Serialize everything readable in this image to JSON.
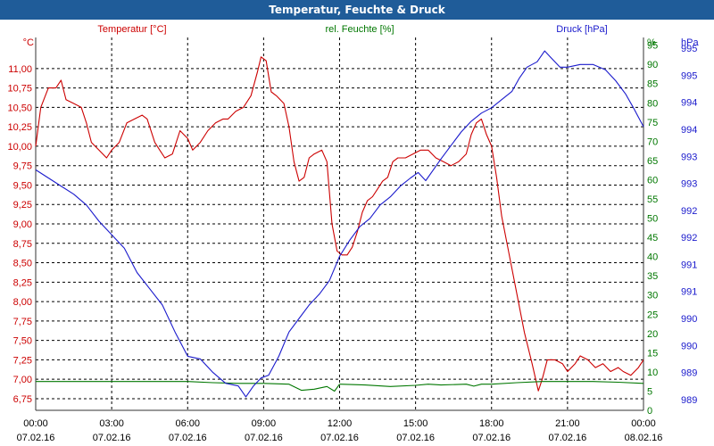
{
  "title": "Temperatur, Feuchte & Druck",
  "colors": {
    "temperature": "#cc0000",
    "humidity": "#007700",
    "pressure": "#1a1acc",
    "titlebar": "#1f5c99",
    "grid": "#000000"
  },
  "chart_data": {
    "type": "line",
    "title": "Temperatur, Feuchte & Druck",
    "x_unit": "hours from 07.02.16 00:00",
    "x_ticks": [
      {
        "time": "00:00",
        "date": "07.02.16"
      },
      {
        "time": "03:00",
        "date": "07.02.16"
      },
      {
        "time": "06:00",
        "date": "07.02.16"
      },
      {
        "time": "09:00",
        "date": "07.02.16"
      },
      {
        "time": "12:00",
        "date": "07.02.16"
      },
      {
        "time": "15:00",
        "date": "07.02.16"
      },
      {
        "time": "18:00",
        "date": "07.02.16"
      },
      {
        "time": "21:00",
        "date": "07.02.16"
      },
      {
        "time": "00:00",
        "date": "08.02.16"
      }
    ],
    "x_range": [
      0,
      24
    ],
    "axes": {
      "temperature": {
        "label": "Temperatur [°C]",
        "unit": "°C",
        "range": [
          6.6,
          11.4
        ],
        "ticks": [
          "11,00",
          "10,75",
          "10,50",
          "10,25",
          "10,00",
          "9,75",
          "9,50",
          "9,25",
          "9,00",
          "8,75",
          "8,50",
          "8,25",
          "8,00",
          "7,75",
          "7,50",
          "7,25",
          "7,00",
          "6,75"
        ],
        "tick_values": [
          11.0,
          10.75,
          10.5,
          10.25,
          10.0,
          9.75,
          9.5,
          9.25,
          9.0,
          8.75,
          8.5,
          8.25,
          8.0,
          7.75,
          7.5,
          7.25,
          7.0,
          6.75
        ]
      },
      "humidity": {
        "label": "rel. Feuchte [%]",
        "unit": "%",
        "range": [
          0,
          97
        ],
        "ticks": [
          "95",
          "90",
          "85",
          "80",
          "75",
          "70",
          "65",
          "60",
          "55",
          "50",
          "45",
          "40",
          "35",
          "30",
          "25",
          "20",
          "15",
          "10",
          "5",
          "0"
        ],
        "tick_values": [
          95,
          90,
          85,
          80,
          75,
          70,
          65,
          60,
          55,
          50,
          45,
          40,
          35,
          30,
          25,
          20,
          15,
          10,
          5,
          0
        ]
      },
      "pressure": {
        "label": "Druck [hPa]",
        "unit": "hPa",
        "range": [
          988.6,
          995.5
        ],
        "ticks": [
          "995",
          "995",
          "994",
          "994",
          "993",
          "993",
          "992",
          "992",
          "991",
          "991",
          "990",
          "990",
          "989",
          "989"
        ],
        "tick_values": [
          995.3,
          994.8,
          994.3,
          993.8,
          993.3,
          992.8,
          992.3,
          991.8,
          991.3,
          990.8,
          990.3,
          989.8,
          989.3,
          988.8
        ]
      }
    },
    "series": [
      {
        "name": "Temperatur",
        "axis": "temperature",
        "points": [
          [
            0,
            10.0
          ],
          [
            0.2,
            10.5
          ],
          [
            0.5,
            10.75
          ],
          [
            0.8,
            10.75
          ],
          [
            1.0,
            10.85
          ],
          [
            1.2,
            10.6
          ],
          [
            1.5,
            10.55
          ],
          [
            1.8,
            10.5
          ],
          [
            2.0,
            10.3
          ],
          [
            2.2,
            10.05
          ],
          [
            2.5,
            9.95
          ],
          [
            2.8,
            9.85
          ],
          [
            3.0,
            9.95
          ],
          [
            3.3,
            10.05
          ],
          [
            3.6,
            10.3
          ],
          [
            3.9,
            10.35
          ],
          [
            4.2,
            10.4
          ],
          [
            4.4,
            10.35
          ],
          [
            4.7,
            10.05
          ],
          [
            4.9,
            9.95
          ],
          [
            5.1,
            9.85
          ],
          [
            5.4,
            9.9
          ],
          [
            5.7,
            10.2
          ],
          [
            6.0,
            10.1
          ],
          [
            6.2,
            9.95
          ],
          [
            6.5,
            10.05
          ],
          [
            6.8,
            10.2
          ],
          [
            7.1,
            10.3
          ],
          [
            7.4,
            10.35
          ],
          [
            7.6,
            10.35
          ],
          [
            7.9,
            10.45
          ],
          [
            8.2,
            10.5
          ],
          [
            8.5,
            10.65
          ],
          [
            8.75,
            10.95
          ],
          [
            8.9,
            11.15
          ],
          [
            9.1,
            11.1
          ],
          [
            9.3,
            10.7
          ],
          [
            9.5,
            10.65
          ],
          [
            9.8,
            10.55
          ],
          [
            10.0,
            10.25
          ],
          [
            10.2,
            9.8
          ],
          [
            10.4,
            9.55
          ],
          [
            10.6,
            9.6
          ],
          [
            10.8,
            9.85
          ],
          [
            11.0,
            9.9
          ],
          [
            11.3,
            9.95
          ],
          [
            11.5,
            9.8
          ],
          [
            11.7,
            9.0
          ],
          [
            11.9,
            8.65
          ],
          [
            12.1,
            8.6
          ],
          [
            12.3,
            8.6
          ],
          [
            12.5,
            8.7
          ],
          [
            12.7,
            8.9
          ],
          [
            12.9,
            9.15
          ],
          [
            13.1,
            9.3
          ],
          [
            13.3,
            9.35
          ],
          [
            13.5,
            9.45
          ],
          [
            13.7,
            9.55
          ],
          [
            13.9,
            9.6
          ],
          [
            14.1,
            9.8
          ],
          [
            14.3,
            9.85
          ],
          [
            14.6,
            9.85
          ],
          [
            14.9,
            9.9
          ],
          [
            15.2,
            9.95
          ],
          [
            15.5,
            9.95
          ],
          [
            15.8,
            9.85
          ],
          [
            16.1,
            9.8
          ],
          [
            16.4,
            9.75
          ],
          [
            16.7,
            9.8
          ],
          [
            17.0,
            9.9
          ],
          [
            17.2,
            10.15
          ],
          [
            17.4,
            10.3
          ],
          [
            17.6,
            10.35
          ],
          [
            17.8,
            10.15
          ],
          [
            18.0,
            10.0
          ],
          [
            18.2,
            9.6
          ],
          [
            18.4,
            9.1
          ],
          [
            18.7,
            8.6
          ],
          [
            19.0,
            8.1
          ],
          [
            19.3,
            7.6
          ],
          [
            19.6,
            7.2
          ],
          [
            19.85,
            6.85
          ],
          [
            20.0,
            7.0
          ],
          [
            20.2,
            7.25
          ],
          [
            20.5,
            7.25
          ],
          [
            20.8,
            7.2
          ],
          [
            21.0,
            7.1
          ],
          [
            21.3,
            7.2
          ],
          [
            21.5,
            7.3
          ],
          [
            21.8,
            7.25
          ],
          [
            22.1,
            7.15
          ],
          [
            22.4,
            7.2
          ],
          [
            22.7,
            7.1
          ],
          [
            23.0,
            7.15
          ],
          [
            23.2,
            7.1
          ],
          [
            23.5,
            7.05
          ],
          [
            23.8,
            7.15
          ],
          [
            24.0,
            7.25
          ]
        ]
      },
      {
        "name": "rel. Feuchte",
        "axis": "humidity",
        "points": [
          [
            0,
            7.5
          ],
          [
            2,
            7.5
          ],
          [
            4,
            7.5
          ],
          [
            6,
            7.5
          ],
          [
            7,
            7.2
          ],
          [
            8,
            7.0
          ],
          [
            9,
            7.0
          ],
          [
            10,
            6.8
          ],
          [
            10.5,
            5.2
          ],
          [
            11,
            5.5
          ],
          [
            11.5,
            6.2
          ],
          [
            11.8,
            5.0
          ],
          [
            12,
            6.8
          ],
          [
            13,
            6.6
          ],
          [
            14,
            6.2
          ],
          [
            15,
            6.5
          ],
          [
            15.5,
            6.8
          ],
          [
            16,
            6.6
          ],
          [
            17,
            6.8
          ],
          [
            17.3,
            6.3
          ],
          [
            17.6,
            6.8
          ],
          [
            18,
            6.8
          ],
          [
            19,
            7.2
          ],
          [
            20,
            7.5
          ],
          [
            21,
            7.5
          ],
          [
            22,
            7.5
          ],
          [
            23,
            7.3
          ],
          [
            24,
            7.0
          ]
        ]
      },
      {
        "name": "Druck",
        "axis": "pressure",
        "points": [
          [
            0,
            993.05
          ],
          [
            0.5,
            992.9
          ],
          [
            1.0,
            992.75
          ],
          [
            1.5,
            992.6
          ],
          [
            2.0,
            992.4
          ],
          [
            2.5,
            992.1
          ],
          [
            3.0,
            991.85
          ],
          [
            3.5,
            991.6
          ],
          [
            4.0,
            991.15
          ],
          [
            4.5,
            990.85
          ],
          [
            5.0,
            990.55
          ],
          [
            5.5,
            990.05
          ],
          [
            6.0,
            989.6
          ],
          [
            6.5,
            989.55
          ],
          [
            7.0,
            989.3
          ],
          [
            7.5,
            989.1
          ],
          [
            8.0,
            989.05
          ],
          [
            8.3,
            988.85
          ],
          [
            8.6,
            989.05
          ],
          [
            8.9,
            989.2
          ],
          [
            9.2,
            989.25
          ],
          [
            9.6,
            989.6
          ],
          [
            10.0,
            990.05
          ],
          [
            10.4,
            990.3
          ],
          [
            10.8,
            990.55
          ],
          [
            11.2,
            990.75
          ],
          [
            11.6,
            991.0
          ],
          [
            12.0,
            991.45
          ],
          [
            12.4,
            991.75
          ],
          [
            12.8,
            992.0
          ],
          [
            13.2,
            992.15
          ],
          [
            13.6,
            992.4
          ],
          [
            14.0,
            992.55
          ],
          [
            14.4,
            992.75
          ],
          [
            14.8,
            992.9
          ],
          [
            15.1,
            993.0
          ],
          [
            15.4,
            992.85
          ],
          [
            15.7,
            993.05
          ],
          [
            16.0,
            993.25
          ],
          [
            16.4,
            993.5
          ],
          [
            16.8,
            993.75
          ],
          [
            17.2,
            993.95
          ],
          [
            17.6,
            994.1
          ],
          [
            18.0,
            994.2
          ],
          [
            18.4,
            994.35
          ],
          [
            18.8,
            994.5
          ],
          [
            19.1,
            994.75
          ],
          [
            19.4,
            994.95
          ],
          [
            19.8,
            995.05
          ],
          [
            20.1,
            995.25
          ],
          [
            20.3,
            995.15
          ],
          [
            20.7,
            994.95
          ],
          [
            21.0,
            994.95
          ],
          [
            21.5,
            995.0
          ],
          [
            22.0,
            995.0
          ],
          [
            22.5,
            994.9
          ],
          [
            22.9,
            994.7
          ],
          [
            23.3,
            994.45
          ],
          [
            23.6,
            994.2
          ],
          [
            24.0,
            993.85
          ]
        ]
      }
    ]
  }
}
